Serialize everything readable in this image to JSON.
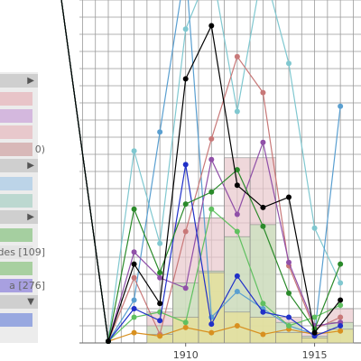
{
  "chart_data": {
    "type": "line",
    "x": [
      1905,
      1907,
      1908,
      1909,
      1910,
      1911,
      1912,
      1913,
      1914,
      1915,
      1916
    ],
    "xlim": [
      1902.8,
      1916.8
    ],
    "ylim": [
      0,
      20
    ],
    "xticks": [
      1910,
      1915
    ],
    "xgrid": [
      1906,
      1906.5,
      1907,
      1907.5,
      1908,
      1908.5,
      1909,
      1909.5,
      1910,
      1910.5,
      1911,
      1911.5,
      1912,
      1912.5,
      1913,
      1913.5,
      1914,
      1914.5,
      1915,
      1915.5,
      1916,
      1916.5
    ],
    "ygrid": [
      1,
      2,
      3,
      4,
      5,
      6,
      7,
      8,
      9,
      10,
      11,
      12,
      13,
      14,
      15,
      16,
      17,
      18,
      19,
      20
    ],
    "bars": {
      "x": [
        1909,
        1910,
        1911,
        1912,
        1913,
        1914,
        1915,
        1916
      ],
      "series": [
        {
          "color": "#e8c8cc",
          "values": [
            1.8,
            7.0,
            7.3,
            10.8,
            10.8,
            1.5,
            0.6,
            2.0
          ]
        },
        {
          "color": "#c8e4bc",
          "values": [
            1.0,
            3.5,
            4.2,
            6.2,
            6.9,
            1.2,
            0.4,
            1.2
          ]
        },
        {
          "color": "#e8e094",
          "values": [
            0.5,
            1.5,
            4.1,
            1.8,
            1.5,
            0.6,
            0.3,
            0.8
          ]
        }
      ]
    },
    "series": [
      {
        "color": "#80c8d0",
        "values": [
          22,
          0.1,
          11.2,
          5.8,
          18.3,
          22,
          13.5,
          22,
          16.3,
          6.7,
          3.5
        ]
      },
      {
        "color": "#5a9fd0",
        "values": [
          22,
          0.1,
          2.5,
          12.3,
          22,
          1.5,
          3.0,
          2.0,
          1.0,
          0.5,
          13.8
        ]
      },
      {
        "color": "#c87878",
        "values": [
          22,
          0.1,
          3.8,
          0.5,
          6.5,
          11.9,
          16.7,
          14.6,
          4.5,
          0.8,
          1.5
        ]
      },
      {
        "color": "#d89020",
        "values": [
          22,
          0.1,
          0.6,
          0.4,
          0.9,
          0.6,
          1.0,
          0.5,
          0.8,
          0.5,
          0.7
        ]
      },
      {
        "color": "#60c060",
        "values": [
          22,
          0.1,
          1.5,
          1.8,
          1.2,
          7.8,
          6.5,
          2.3,
          1.0,
          1.5,
          2.2
        ]
      },
      {
        "color": "#9050a8",
        "values": [
          22,
          0.1,
          5.3,
          3.8,
          3.2,
          10.7,
          7.5,
          11.7,
          4.7,
          1.0,
          1.2
        ]
      },
      {
        "color": "#2030c8",
        "values": [
          22,
          0.1,
          2.0,
          1.3,
          10.4,
          1.1,
          3.9,
          1.8,
          1.5,
          0.4,
          1.0
        ]
      },
      {
        "color": "#2a8a2a",
        "values": [
          22,
          0.1,
          7.8,
          4.1,
          8.1,
          8.8,
          10.1,
          6.8,
          2.9,
          0.8,
          4.6
        ]
      },
      {
        "color": "#000000",
        "values": [
          22,
          0.1,
          4.6,
          2.3,
          15.4,
          18.5,
          9.2,
          7.9,
          8.5,
          0.6,
          2.5
        ]
      }
    ]
  },
  "sidebar": {
    "rows": [
      {
        "kind": "head",
        "arrow": "▶"
      },
      {
        "kind": "item",
        "color": "#e8c4c8"
      },
      {
        "kind": "item",
        "color": "#d4b8de"
      },
      {
        "kind": "item",
        "color": "#e8c8cc"
      },
      {
        "kind": "item",
        "color": "#d8b8b8",
        "label": "0)"
      },
      {
        "kind": "head",
        "arrow": "▶"
      },
      {
        "kind": "item",
        "color": "#bcd4e8"
      },
      {
        "kind": "item",
        "color": "#bcd8d0"
      },
      {
        "kind": "head",
        "arrow": "▶"
      },
      {
        "kind": "item",
        "color": "#a5cfa0"
      },
      {
        "kind": "item",
        "color": "#e4e4e4",
        "label": "ades [109]"
      },
      {
        "kind": "item",
        "color": "#a8d0a0"
      },
      {
        "kind": "item",
        "color": "#a8a0e0",
        "label": "a [276]"
      },
      {
        "kind": "head",
        "arrow": "▼"
      },
      {
        "kind": "item",
        "color": "#98a8e0"
      }
    ]
  }
}
